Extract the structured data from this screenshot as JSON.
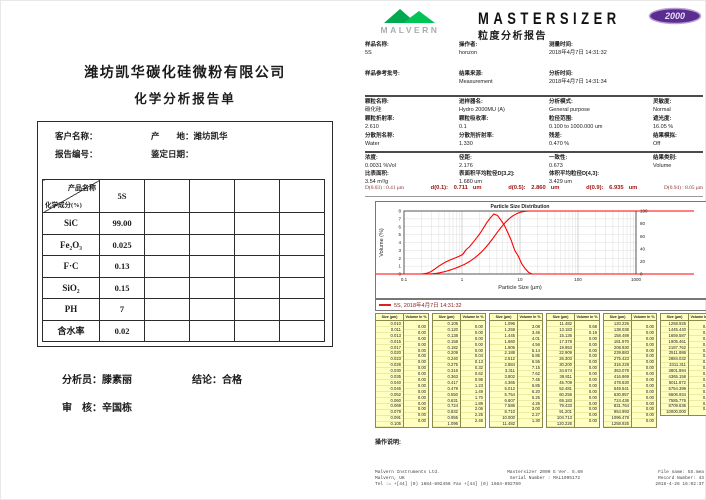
{
  "left_report": {
    "company": "潍坊凯华碳化硅微粉有限公司",
    "title": "化学分析报告单",
    "customer_label": "客户名称：",
    "report_no_label": "报告编号：",
    "origin_label": "产　　地：",
    "origin_value": "潍坊凯华",
    "date_label": "鉴定日期：",
    "table": {
      "corner_top": "产品名称",
      "corner_bottom": "化学成分(%)",
      "product_header": "5S",
      "rows": [
        [
          "SiC",
          "99.00"
        ],
        [
          "Fe₂O₃",
          "0.025"
        ],
        [
          "F·C",
          "0.13"
        ],
        [
          "SiO₂",
          "0.15"
        ],
        [
          "PH",
          "7"
        ],
        [
          "含水率",
          "0.02"
        ]
      ]
    },
    "analyst_label": "分析员：",
    "analyst_name": "滕素丽",
    "conclusion_label": "结论：",
    "conclusion_value": "合格",
    "reviewer_label": "审　核：",
    "reviewer_name": "辛国栋"
  },
  "right_report": {
    "brand": "MALVERN",
    "product_name": "MASTERSIZER",
    "model": "2000",
    "report_title": "粒度分析报告",
    "sample_info": [
      {
        "label": "样品名称:",
        "value": "5S"
      },
      {
        "label": "操作者:",
        "value": "honzon"
      },
      {
        "label": "测量时间:",
        "value": "2018年4月7日 14:31:32"
      },
      {
        "label": "样品参考批号:",
        "value": ""
      },
      {
        "label": "结果来源:",
        "value": "Measurement"
      },
      {
        "label": "分析时间:",
        "value": "2018年4月7日 14:31:34"
      }
    ],
    "measure_info": [
      {
        "label": "颗粒名称:",
        "value": "碳化硅"
      },
      {
        "label": "进样器名:",
        "value": "Hydro 2000MU (A)"
      },
      {
        "label": "分析模式:",
        "value": "General purpose"
      },
      {
        "label": "灵敏度:",
        "value": "Normal"
      },
      {
        "label": "颗粒折射率:",
        "value": "2.610"
      },
      {
        "label": "颗粒吸收率:",
        "value": "0.1"
      },
      {
        "label": "粒径范围:",
        "value": "0.100 to 1000.000 um"
      },
      {
        "label": "遮光度:",
        "value": "16.05 %"
      },
      {
        "label": "分散剂名称:",
        "value": "Water"
      },
      {
        "label": "分散剂折射率:",
        "value": "1.330"
      },
      {
        "label": "残差:",
        "value": "0.470 %"
      },
      {
        "label": "结果模拟:",
        "value": "Off"
      }
    ],
    "result_info": [
      {
        "label": "浓度:",
        "value": "0.0031   %Vol"
      },
      {
        "label": "径距:",
        "value": "2.176"
      },
      {
        "label": "一致性:",
        "value": "0.673"
      },
      {
        "label": "结果类别:",
        "value": "Volume"
      }
    ],
    "mean_info": [
      {
        "label": "比表面积:",
        "value": "3.54   m²/g"
      },
      {
        "label": "表面积平均粒径D[3,2]:",
        "value": "1.680   um"
      },
      {
        "label": "体积平均粒径D[4,3]:",
        "value": "3.429   um"
      }
    ],
    "percentiles": [
      {
        "label": "D(0.03) :",
        "value": "0.41 μm",
        "style": "annot"
      },
      {
        "label": "d(0.1):",
        "value": "0.711",
        "unit": "um"
      },
      {
        "label": "d(0.5):",
        "value": "2.860",
        "unit": "um"
      },
      {
        "label": "d(0.9):",
        "value": "6.935",
        "unit": "um"
      },
      {
        "label": "D(0.94) :",
        "value": "8.05 μm",
        "style": "annot"
      }
    ],
    "operation_note_label": "操作说明:",
    "footer": {
      "left": [
        "Malvern Instruments Ltd.",
        "Malvern, UK",
        "Tel := +[44] (0) 1684-892456 Fax +[44] (0) 1684-892789"
      ],
      "center": [
        "Mastersizer 2000 E Ver. 5.60",
        "Serial Number : MAL1095172"
      ],
      "right": [
        "File name: 5S.mea",
        "Record Number: 43",
        "2018-4-26 16:02:37"
      ]
    }
  },
  "size_table": {
    "size_header": "Size (µm)",
    "volume_header": "Volume In %"
  },
  "chart_data": {
    "type": "line",
    "title": "Particle Size Distribution",
    "xlabel": "Particle Size (µm)",
    "ylabel": "Volume (%)",
    "x_scale": "log",
    "xlim": [
      0.1,
      1000
    ],
    "ylim": [
      0,
      8
    ],
    "y2lim": [
      0,
      100
    ],
    "x_ticks": [
      0.1,
      1,
      10,
      100,
      1000
    ],
    "y_ticks": [
      0,
      1,
      2,
      3,
      4,
      5,
      6,
      7,
      8
    ],
    "y2_ticks": [
      0,
      20,
      40,
      60,
      80,
      100
    ],
    "legend": "5S, 2018年4月7日 14:31:32",
    "series_color": "#FF0000",
    "series": [
      {
        "name": "volume-frequency",
        "axis": "left"
      },
      {
        "name": "cumulative-undersize",
        "axis": "right"
      }
    ],
    "size_boundaries_um": [
      0.01,
      0.011,
      0.013,
      0.015,
      0.017,
      0.02,
      0.023,
      0.026,
      0.03,
      0.035,
      0.04,
      0.046,
      0.052,
      0.06,
      0.069,
      0.079,
      0.091,
      0.105,
      0.12,
      0.138,
      0.158,
      0.182,
      0.209,
      0.24,
      0.275,
      0.316,
      0.363,
      0.417,
      0.479,
      0.55,
      0.631,
      0.724,
      0.832,
      0.955,
      1.096,
      1.259,
      1.445,
      1.66,
      1.905,
      2.188,
      2.512,
      2.884,
      3.311,
      3.802,
      4.365,
      5.012,
      5.754,
      6.607,
      7.586,
      8.71,
      10.0,
      11.482,
      13.183,
      15.136,
      17.378,
      19.953,
      22.909,
      26.303,
      30.2,
      34.674,
      39.811,
      45.709,
      52.481,
      60.256,
      69.183,
      79.433,
      91.201,
      104.713,
      120.226,
      138.038,
      158.489,
      181.97,
      208.93,
      239.883,
      275.423,
      316.228,
      363.078,
      416.869,
      478.63,
      549.541,
      630.957,
      724.436,
      831.764,
      954.993,
      1096.478,
      1258.925,
      1445.44,
      1659.587,
      1905.461,
      2187.762,
      2511.886,
      2884.032,
      3311.311,
      3801.894,
      4365.158,
      5011.872,
      5754.399,
      6606.934,
      7585.776,
      8709.636,
      10000.0
    ],
    "volume_in_percent": [
      0.0,
      0.0,
      0.0,
      0.0,
      0.0,
      0.0,
      0.0,
      0.0,
      0.0,
      0.0,
      0.0,
      0.0,
      0.0,
      0.0,
      0.0,
      0.0,
      0.0,
      0.0,
      0.0,
      0.0,
      0.0,
      0.0,
      0.04,
      0.13,
      0.32,
      0.62,
      0.95,
      1.23,
      1.49,
      1.7,
      1.89,
      2.06,
      2.25,
      2.46,
      3.08,
      3.46,
      4.01,
      4.56,
      5.14,
      5.85,
      6.55,
      7.15,
      7.62,
      7.45,
      6.85,
      6.2,
      5.25,
      4.25,
      3.0,
      2.27,
      1.3,
      0.68,
      0.19,
      0.0,
      0.0,
      0.0,
      0.0,
      0.0,
      0.0,
      0.0,
      0.0,
      0.0,
      0.0,
      0.0,
      0.0,
      0.0,
      0.0,
      0.0,
      0.0,
      0.0,
      0.0,
      0.0,
      0.0,
      0.0,
      0.0,
      0.0,
      0.0,
      0.0,
      0.0,
      0.0,
      0.0,
      0.0,
      0.0,
      0.0,
      0.0,
      0.0,
      0.0,
      0.0,
      0.0,
      0.0,
      0.0,
      0.0,
      0.0,
      0.0,
      0.0,
      0.0,
      0.0,
      0.0,
      0.0,
      0.0
    ]
  }
}
